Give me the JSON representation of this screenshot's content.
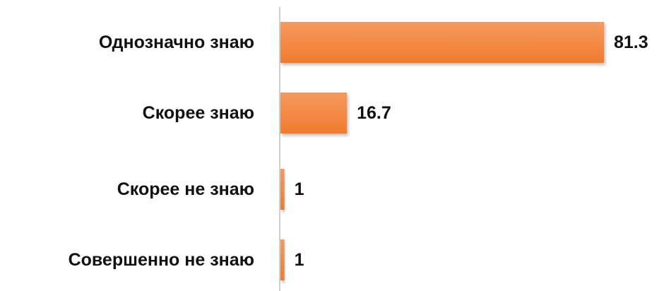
{
  "chart_data": {
    "type": "bar",
    "orientation": "horizontal",
    "categories": [
      "Однозначно знаю",
      "Скорее знаю",
      "Скорее не знаю",
      "Совершенно не знаю"
    ],
    "values": [
      81.3,
      16.7,
      1,
      1
    ],
    "value_labels": [
      "81.3",
      "16.7",
      "1",
      "1"
    ],
    "title": "",
    "xlabel": "",
    "ylabel": "",
    "xlim": [
      0,
      82
    ],
    "grid": false,
    "legend": "none",
    "bar_color": "#F07B2E",
    "bar_highlight_color": "#F59A5E",
    "axis_color": "#BFBFBF"
  }
}
